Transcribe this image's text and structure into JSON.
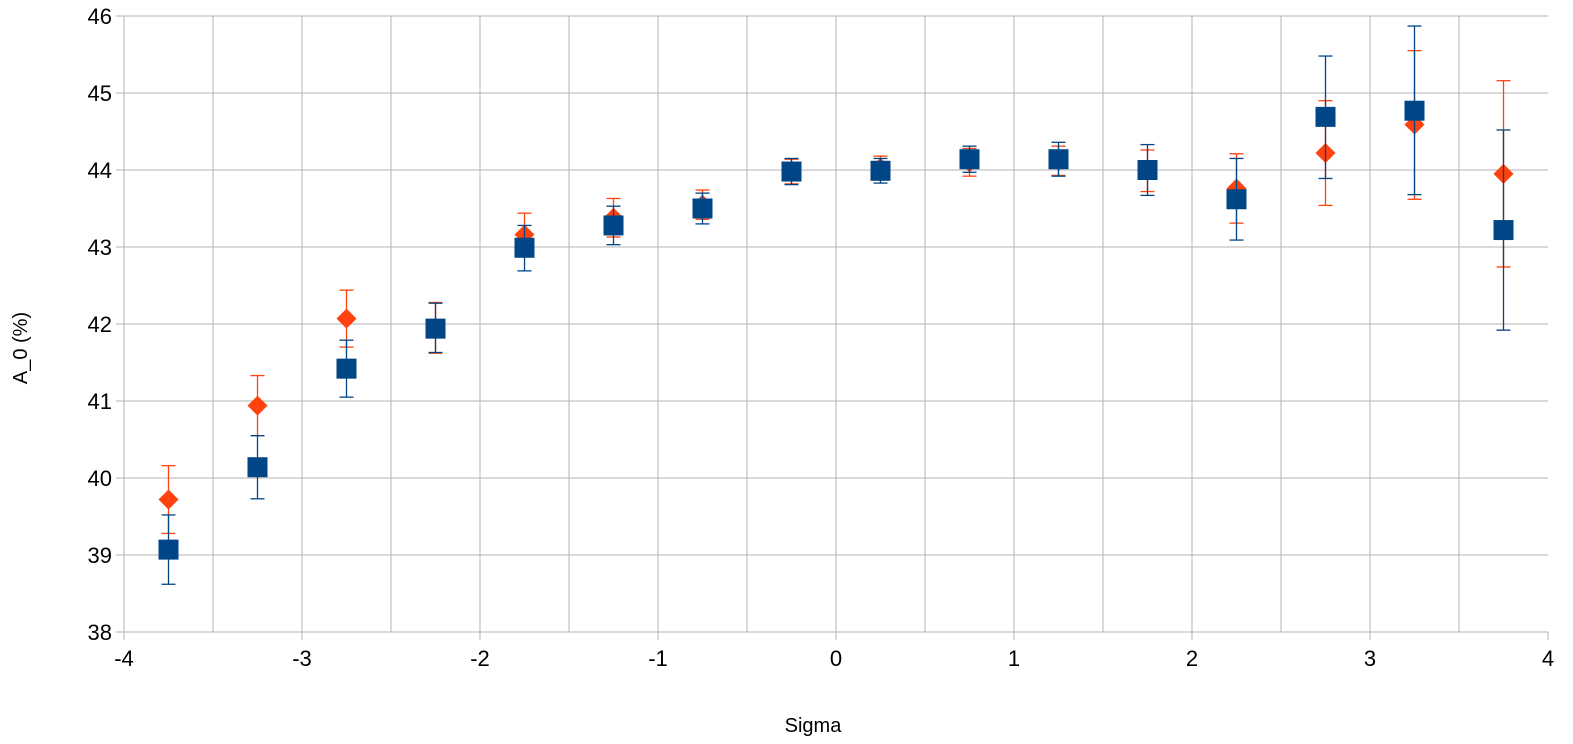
{
  "chart_data": {
    "type": "scatter",
    "xlabel": "Sigma",
    "ylabel": "A_0 (%)",
    "xlim": [
      -4,
      4
    ],
    "ylim": [
      38,
      46
    ],
    "x_ticks": [
      "-4",
      "-3",
      "-2",
      "-1",
      "0",
      "1",
      "2",
      "3",
      "4"
    ],
    "y_ticks": [
      "38",
      "39",
      "40",
      "41",
      "42",
      "43",
      "44",
      "45",
      "46"
    ],
    "grid": true,
    "legend": "none",
    "series": [
      {
        "marker": "diamond",
        "color": "#ff420e",
        "points": [
          {
            "x": -3.75,
            "y": 39.72,
            "err_low": 39.28,
            "err_high": 40.16
          },
          {
            "x": -3.25,
            "y": 40.94,
            "err_low": 40.55,
            "err_high": 41.33
          },
          {
            "x": -2.75,
            "y": 42.07,
            "err_low": 41.7,
            "err_high": 42.44
          },
          {
            "x": -2.25,
            "y": 41.95,
            "err_low": 41.62,
            "err_high": 42.28
          },
          {
            "x": -1.75,
            "y": 43.16,
            "err_low": 42.88,
            "err_high": 43.44
          },
          {
            "x": -1.25,
            "y": 43.38,
            "err_low": 43.13,
            "err_high": 43.63
          },
          {
            "x": -0.75,
            "y": 43.55,
            "err_low": 43.36,
            "err_high": 43.74
          },
          {
            "x": -0.25,
            "y": 43.98,
            "err_low": 43.82,
            "err_high": 44.14
          },
          {
            "x": 0.25,
            "y": 44.03,
            "err_low": 43.87,
            "err_high": 44.18
          },
          {
            "x": 0.75,
            "y": 44.1,
            "err_low": 43.92,
            "err_high": 44.28
          },
          {
            "x": 1.25,
            "y": 44.12,
            "err_low": 43.93,
            "err_high": 44.31
          },
          {
            "x": 1.75,
            "y": 43.99,
            "err_low": 43.72,
            "err_high": 44.26
          },
          {
            "x": 2.25,
            "y": 43.76,
            "err_low": 43.31,
            "err_high": 44.21
          },
          {
            "x": 2.75,
            "y": 44.22,
            "err_low": 43.54,
            "err_high": 44.9
          },
          {
            "x": 3.25,
            "y": 44.59,
            "err_low": 43.62,
            "err_high": 45.55
          },
          {
            "x": 3.75,
            "y": 43.95,
            "err_low": 42.74,
            "err_high": 45.16
          }
        ]
      },
      {
        "marker": "square",
        "color": "#004586",
        "points": [
          {
            "x": -3.75,
            "y": 39.07,
            "err_low": 38.62,
            "err_high": 39.52
          },
          {
            "x": -3.25,
            "y": 40.14,
            "err_low": 39.73,
            "err_high": 40.55
          },
          {
            "x": -2.75,
            "y": 41.42,
            "err_low": 41.05,
            "err_high": 41.79
          },
          {
            "x": -2.25,
            "y": 41.94,
            "err_low": 41.63,
            "err_high": 42.27
          },
          {
            "x": -1.75,
            "y": 42.99,
            "err_low": 42.69,
            "err_high": 43.28
          },
          {
            "x": -1.25,
            "y": 43.28,
            "err_low": 43.03,
            "err_high": 43.53
          },
          {
            "x": -0.75,
            "y": 43.5,
            "err_low": 43.3,
            "err_high": 43.7
          },
          {
            "x": -0.25,
            "y": 43.98,
            "err_low": 43.81,
            "err_high": 44.15
          },
          {
            "x": 0.25,
            "y": 43.99,
            "err_low": 43.83,
            "err_high": 44.15
          },
          {
            "x": 0.75,
            "y": 44.14,
            "err_low": 43.97,
            "err_high": 44.31
          },
          {
            "x": 1.25,
            "y": 44.14,
            "err_low": 43.92,
            "err_high": 44.36
          },
          {
            "x": 1.75,
            "y": 44.0,
            "err_low": 43.67,
            "err_high": 44.33
          },
          {
            "x": 2.25,
            "y": 43.62,
            "err_low": 43.09,
            "err_high": 44.15
          },
          {
            "x": 2.75,
            "y": 44.69,
            "err_low": 43.89,
            "err_high": 45.48
          },
          {
            "x": 3.25,
            "y": 44.77,
            "err_low": 43.68,
            "err_high": 45.87
          },
          {
            "x": 3.75,
            "y": 43.22,
            "err_low": 41.92,
            "err_high": 44.52
          }
        ]
      }
    ]
  }
}
